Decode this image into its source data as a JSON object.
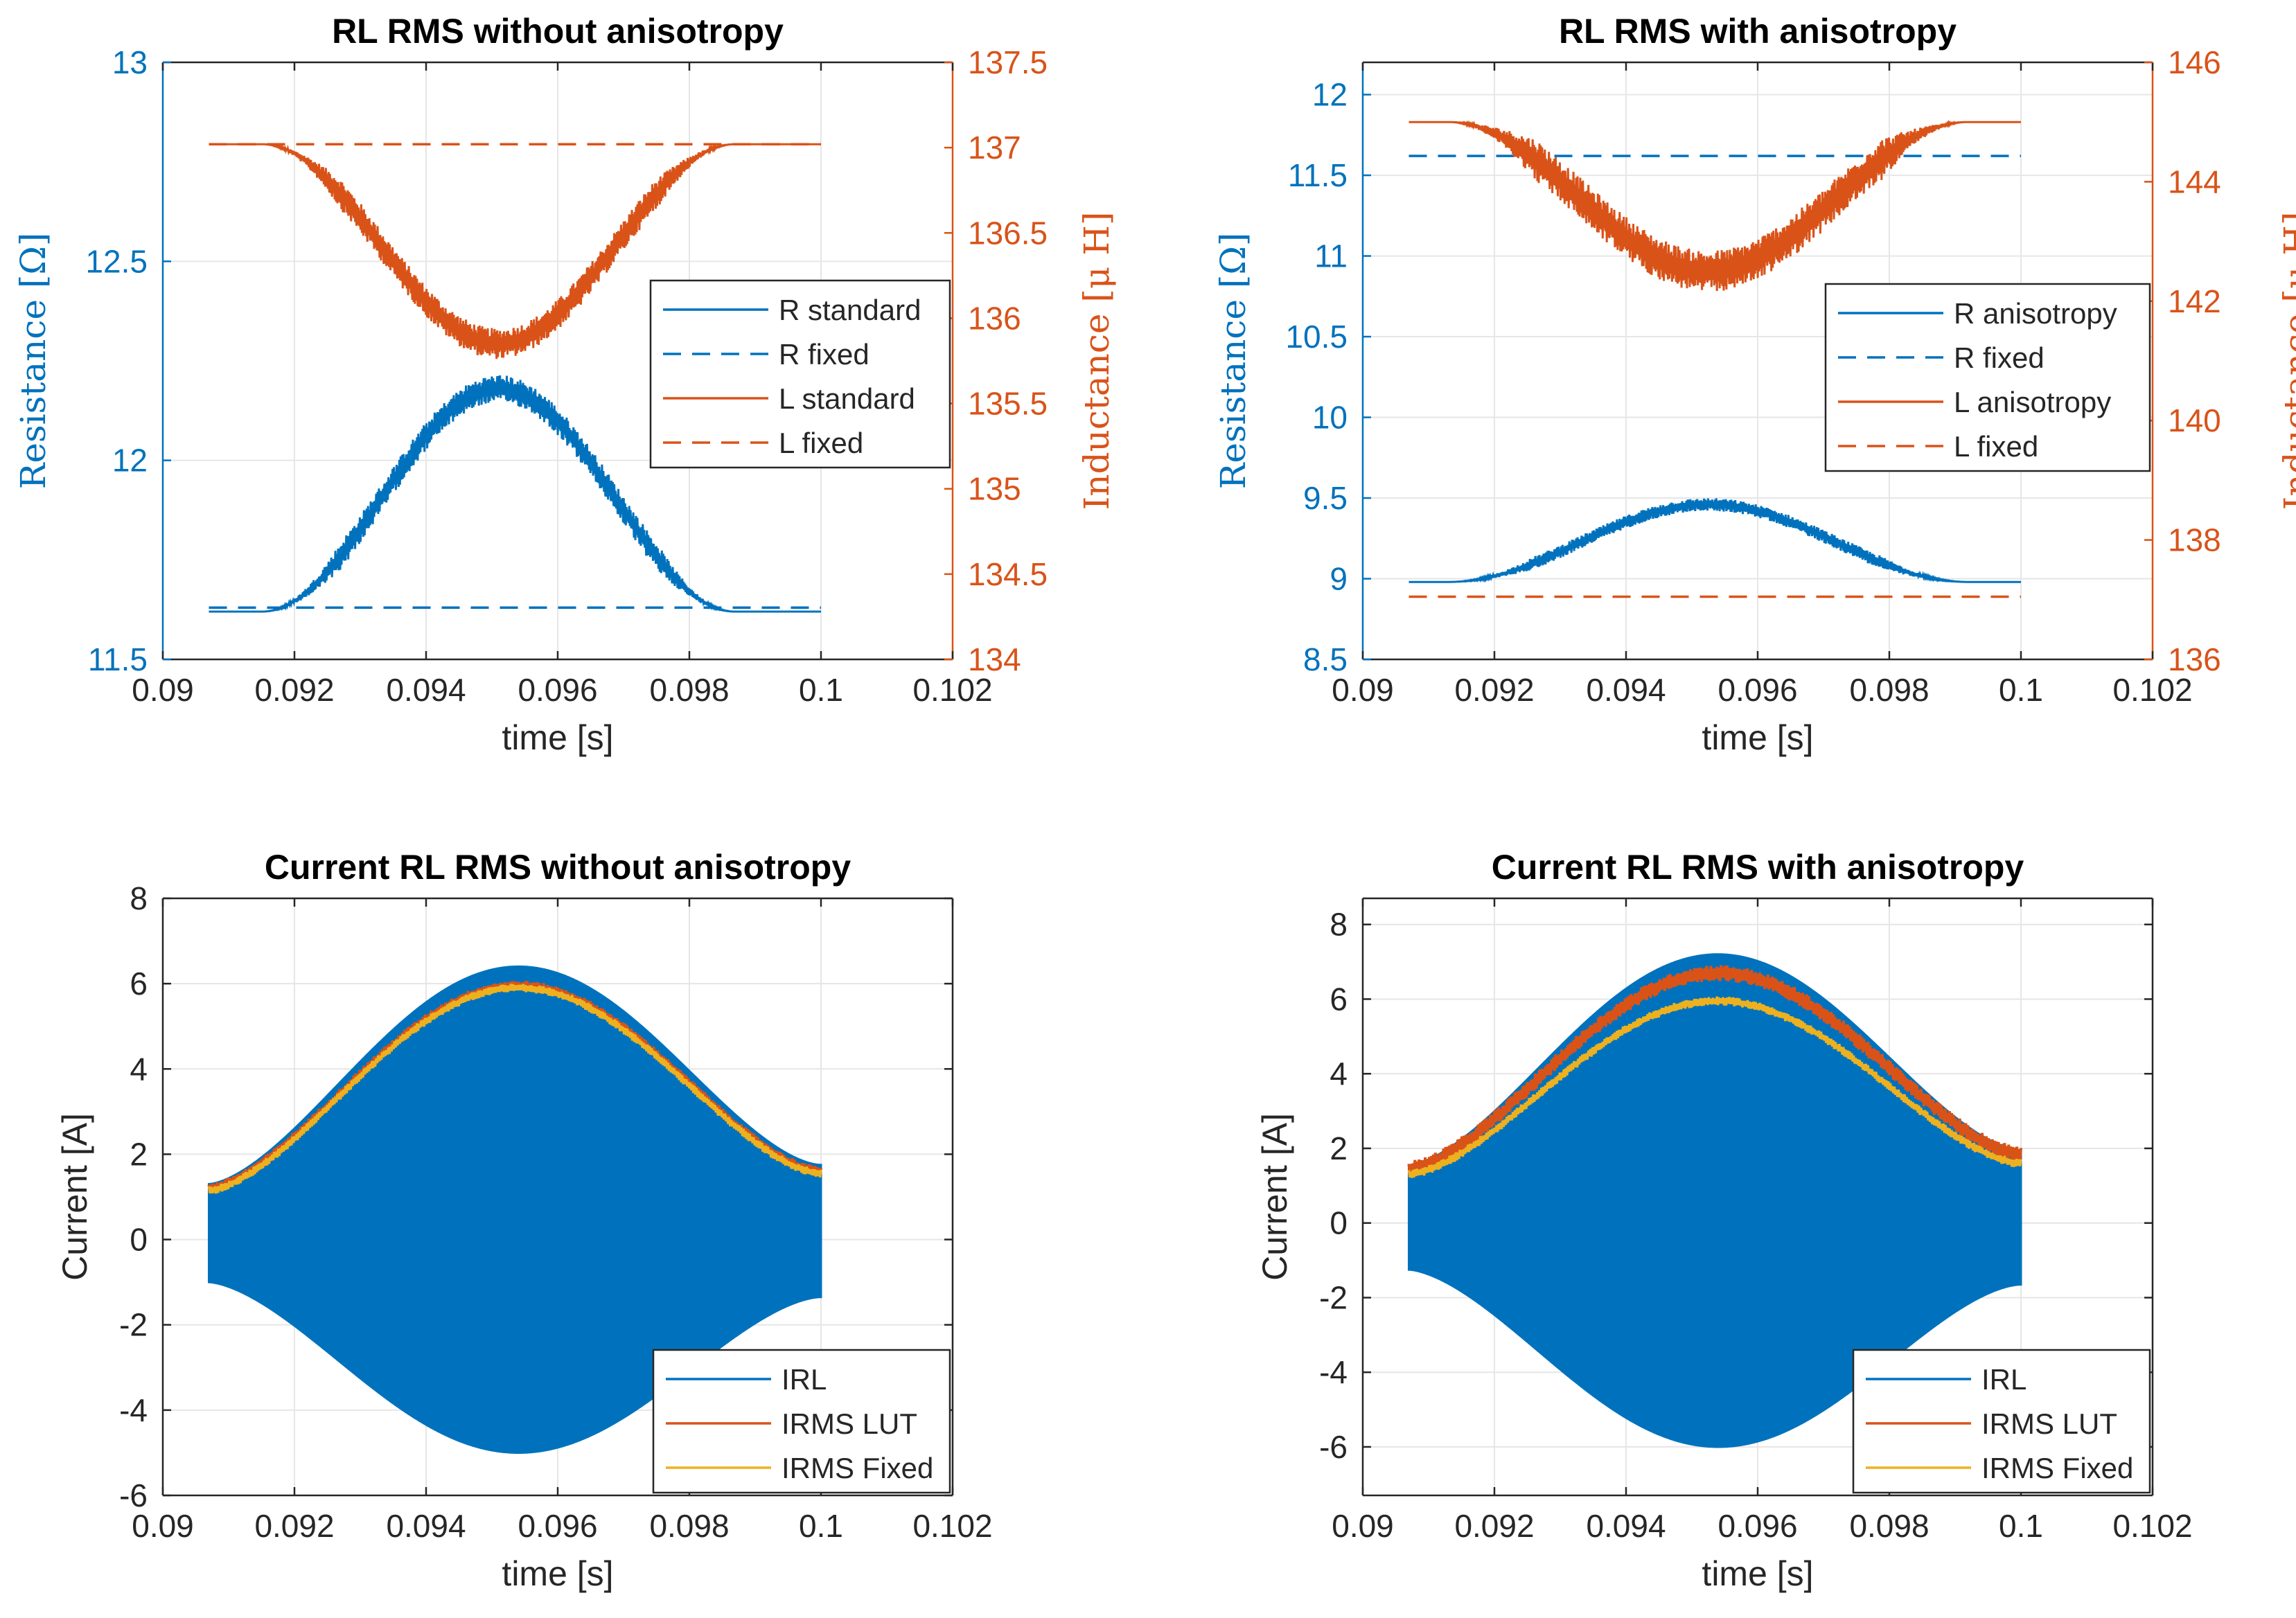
{
  "colors": {
    "blue": "#0072BD",
    "orange": "#D95319",
    "yellow": "#EDB120",
    "grid": "#e6e6e6",
    "axis": "#262626"
  },
  "panels": [
    {
      "kind": "rl",
      "title": "RL RMS without anisotropy",
      "xlabel": "time [s]",
      "ylabel_left": "Resistance [Ω]",
      "ylabel_right": "Inductance [μ H]",
      "xlim": [
        0.09,
        0.102
      ],
      "xticks": [
        "0.09",
        "0.092",
        "0.094",
        "0.096",
        "0.098",
        "0.1",
        "0.102"
      ],
      "ylim_left": [
        11.5,
        13
      ],
      "yticks_left": [
        "11.5",
        "12",
        "12.5",
        "13"
      ],
      "ylim_right": [
        134,
        137.5
      ],
      "yticks_right": [
        "134",
        "134.5",
        "135",
        "135.5",
        "136",
        "136.5",
        "137",
        "137.5"
      ],
      "legend": [
        "R standard",
        "R fixed",
        "L standard",
        "L fixed"
      ],
      "legend_position": "right-middle",
      "series": {
        "R_varying": {
          "name": "R standard",
          "axis": "left",
          "t_start": 0.0907,
          "t_end": 0.1,
          "t_rise": 0.0915,
          "t_fall": 0.0987,
          "base": 11.62,
          "peak": 12.18,
          "ripple": 0.035
        },
        "R_fixed": {
          "name": "R fixed",
          "axis": "left",
          "t_start": 0.0907,
          "t_end": 0.1,
          "value": 11.63
        },
        "L_varying": {
          "name": "L standard",
          "axis": "right",
          "t_start": 0.0907,
          "t_end": 0.1,
          "t_rise": 0.0915,
          "t_fall": 0.0987,
          "base": 137.02,
          "peak": 135.85,
          "ripple": 0.09
        },
        "L_fixed": {
          "name": "L fixed",
          "axis": "right",
          "t_start": 0.0907,
          "t_end": 0.1,
          "value": 137.02
        }
      }
    },
    {
      "kind": "rl",
      "title": "RL RMS with anisotropy",
      "xlabel": "time [s]",
      "ylabel_left": "Resistance [Ω]",
      "ylabel_right": "Inductance [μ H]",
      "xlim": [
        0.09,
        0.102
      ],
      "xticks": [
        "0.09",
        "0.092",
        "0.094",
        "0.096",
        "0.098",
        "0.1",
        "0.102"
      ],
      "ylim_left": [
        8.5,
        12.2
      ],
      "yticks_left": [
        "8.5",
        "9",
        "9.5",
        "10",
        "10.5",
        "11",
        "11.5",
        "12"
      ],
      "ylim_right": [
        136,
        146
      ],
      "yticks_right": [
        "136",
        "138",
        "140",
        "142",
        "144",
        "146"
      ],
      "legend": [
        "R anisotropy",
        "R fixed",
        "L anisotropy",
        "L fixed"
      ],
      "legend_position": "right-middle",
      "series": {
        "R_varying": {
          "name": "R anisotropy",
          "axis": "left",
          "t_start": 0.0907,
          "t_end": 0.1,
          "t_rise": 0.0913,
          "t_fall": 0.0992,
          "base": 8.98,
          "peak": 9.46,
          "ripple": 0.04
        },
        "R_fixed": {
          "name": "R fixed",
          "axis": "left",
          "t_start": 0.0907,
          "t_end": 0.1,
          "value": 11.62
        },
        "L_varying": {
          "name": "L anisotropy",
          "axis": "right",
          "t_start": 0.0907,
          "t_end": 0.1,
          "t_rise": 0.0913,
          "t_fall": 0.0992,
          "base": 145.0,
          "peak": 142.5,
          "ripple": 0.35
        },
        "L_fixed": {
          "name": "L fixed",
          "axis": "right",
          "t_start": 0.0907,
          "t_end": 0.1,
          "value": 137.05
        }
      }
    },
    {
      "kind": "current",
      "title": "Current RL RMS without anisotropy",
      "xlabel": "time [s]",
      "ylabel": "Current [A]",
      "xlim": [
        0.09,
        0.102
      ],
      "xticks": [
        "0.09",
        "0.092",
        "0.094",
        "0.096",
        "0.098",
        "0.1",
        "0.102"
      ],
      "ylim": [
        -6,
        8
      ],
      "yticks": [
        "-6",
        "-4",
        "-2",
        "0",
        "2",
        "4",
        "6",
        "8"
      ],
      "legend": [
        "IRL",
        "IRMS LUT",
        "IRMS Fixed"
      ],
      "legend_position": "bottom-right",
      "series": {
        "IRL": {
          "t_start": 0.0907,
          "t_end": 0.1,
          "env_top": {
            "start": 1.3,
            "peak": 6.4,
            "end": 1.75
          },
          "env_bottom": {
            "start": -1.0,
            "peak": -5.0,
            "end": -1.35
          }
        },
        "IRMS_LUT": {
          "start": 1.2,
          "peak": 5.95,
          "end": 1.6,
          "ripple": 0.12
        },
        "IRMS_Fixed": {
          "start": 1.15,
          "peak": 5.9,
          "end": 1.55,
          "ripple": 0.1
        }
      }
    },
    {
      "kind": "current",
      "title": "Current RL RMS with anisotropy",
      "xlabel": "time [s]",
      "ylabel": "Current [A]",
      "xlim": [
        0.09,
        0.102
      ],
      "xticks": [
        "0.09",
        "0.092",
        "0.094",
        "0.096",
        "0.098",
        "0.1",
        "0.102"
      ],
      "ylim": [
        -7.3,
        8.7
      ],
      "yticks": [
        "-6",
        "-4",
        "-2",
        "0",
        "2",
        "4",
        "6",
        "8"
      ],
      "legend": [
        "IRL",
        "IRMS LUT",
        "IRMS Fixed"
      ],
      "legend_position": "bottom-right",
      "series": {
        "IRL": {
          "t_start": 0.0907,
          "t_end": 0.1,
          "env_top": {
            "start": 1.55,
            "peak": 7.2,
            "end": 1.95
          },
          "env_bottom": {
            "start": -1.25,
            "peak": -6.0,
            "end": -1.65
          }
        },
        "IRMS_LUT": {
          "start": 1.45,
          "peak": 6.7,
          "end": 1.85,
          "ripple": 0.22
        },
        "IRMS_Fixed": {
          "start": 1.3,
          "peak": 5.95,
          "end": 1.6,
          "ripple": 0.12
        }
      }
    }
  ]
}
